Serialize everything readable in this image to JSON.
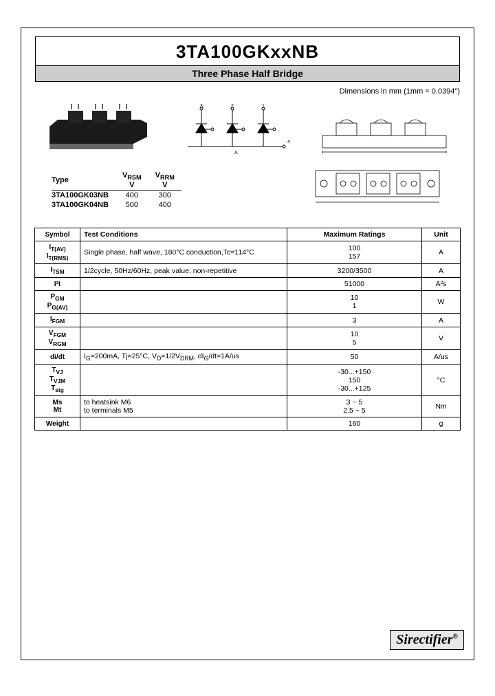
{
  "header": {
    "title": "3TA100GKxxNB",
    "subtitle": "Three Phase Half Bridge",
    "dimensions": "Dimensions in mm (1mm = 0.0394\")"
  },
  "type_table": {
    "headers": {
      "type": "Type",
      "vrsm": "V",
      "vrsm_label": "Vʀsᴍ",
      "vrrm": "V",
      "vrrm_label": "Vʀʀᴍ"
    },
    "rows": [
      {
        "type": "3TA100GK03NB",
        "vrsm": "400",
        "vrrm": "300"
      },
      {
        "type": "3TA100GK04NB",
        "vrsm": "500",
        "vrrm": "400"
      }
    ]
  },
  "main_table": {
    "headers": {
      "symbol": "Symbol",
      "conditions": "Test Conditions",
      "ratings": "Maximum Ratings",
      "unit": "Unit"
    },
    "rows": [
      {
        "symbol": "I<sub>T(AV)</sub><br>I<sub>T(RMS)</sub>",
        "conditions": "Single phase, half wave, 180°C conduction,Tc=114°C",
        "ratings": "100<br>157",
        "unit": "A"
      },
      {
        "symbol": "I<sub>TSM</sub>",
        "conditions": "1/2cycle, 50Hz/60Hz, peak value, non-repetitive",
        "ratings": "3200/3500",
        "unit": "A"
      },
      {
        "symbol": "I²t",
        "conditions": "",
        "ratings": "51000",
        "unit": "A²s"
      },
      {
        "symbol": "P<sub>GM</sub><br>P<sub>G(AV)</sub>",
        "conditions": "",
        "ratings": "10<br>1",
        "unit": "W"
      },
      {
        "symbol": "I<sub>FGM</sub>",
        "conditions": "",
        "ratings": "3",
        "unit": "A"
      },
      {
        "symbol": "V<sub>FGM</sub><br>V<sub>RGM</sub>",
        "conditions": "",
        "ratings": "10<br>5",
        "unit": "V"
      },
      {
        "symbol": "di/dt",
        "conditions": "I<sub>G</sub>=200mA, Tj=25°C, V<sub>D</sub>=1/2V<sub>DRM</sub>, dI<sub>G</sub>/dt=1A/us",
        "ratings": "50",
        "unit": "A/us"
      },
      {
        "symbol": "T<sub>VJ</sub><br>T<sub>VJM</sub><br>T<sub>stg</sub>",
        "conditions": "",
        "ratings": "-30...+150<br>150<br>-30...+125",
        "unit": "°C"
      },
      {
        "symbol": "Ms<br>Mt",
        "conditions": "to heatsink  M6<br>to terminals  M5",
        "ratings": "3  ~  5<br>2.5  ~  5",
        "unit": "Nm"
      },
      {
        "symbol": "Weight",
        "conditions": "",
        "ratings": "160",
        "unit": "g"
      }
    ]
  },
  "footer": {
    "logo": "Sirectifier"
  },
  "colors": {
    "subtitle_bg": "#cccccc",
    "border": "#000000",
    "logo_bg": "#e8e8e8",
    "module_body": "#1a1a1a"
  },
  "figures": {
    "module": {
      "width": 180,
      "height": 80
    },
    "schematic": {
      "pins": [
        "3",
        "2",
        "1",
        "4",
        "A"
      ],
      "diodes": 3
    },
    "side_drawing": {
      "terminals": 3
    },
    "top_drawing": {
      "terminals": 3
    }
  }
}
